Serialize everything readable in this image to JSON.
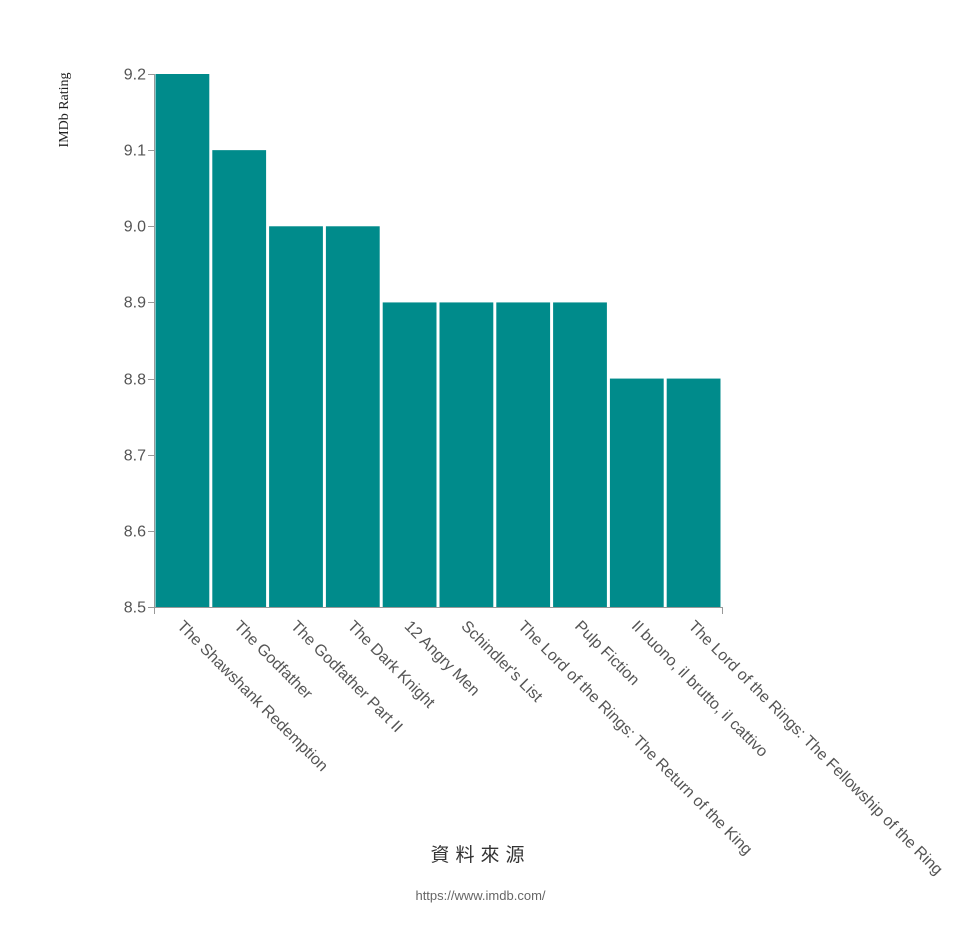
{
  "chart_data": {
    "type": "bar",
    "ylabel": "IMDb Rating",
    "xlabel": "",
    "ylim": [
      8.5,
      9.2
    ],
    "yticks": [
      "8.5",
      "8.6",
      "8.7",
      "8.8",
      "8.9",
      "9.0",
      "9.1",
      "9.2"
    ],
    "grid": false,
    "bar_color": "#008b8b",
    "categories": [
      "The Shawshank Redemption",
      "The Godfather",
      "The Godfather Part II",
      "The Dark Knight",
      "12 Angry Men",
      "Schindler's List",
      "The Lord of the Rings: The Return of the King",
      "Pulp Fiction",
      "Il buono, il brutto, il cattivo",
      "The Lord of the Rings: The Fellowship of the Ring"
    ],
    "values": [
      9.2,
      9.1,
      9.0,
      9.0,
      8.9,
      8.9,
      8.9,
      8.9,
      8.8,
      8.8
    ]
  },
  "footer": {
    "source_title": "資料來源",
    "source_url": "https://www.imdb.com/"
  }
}
